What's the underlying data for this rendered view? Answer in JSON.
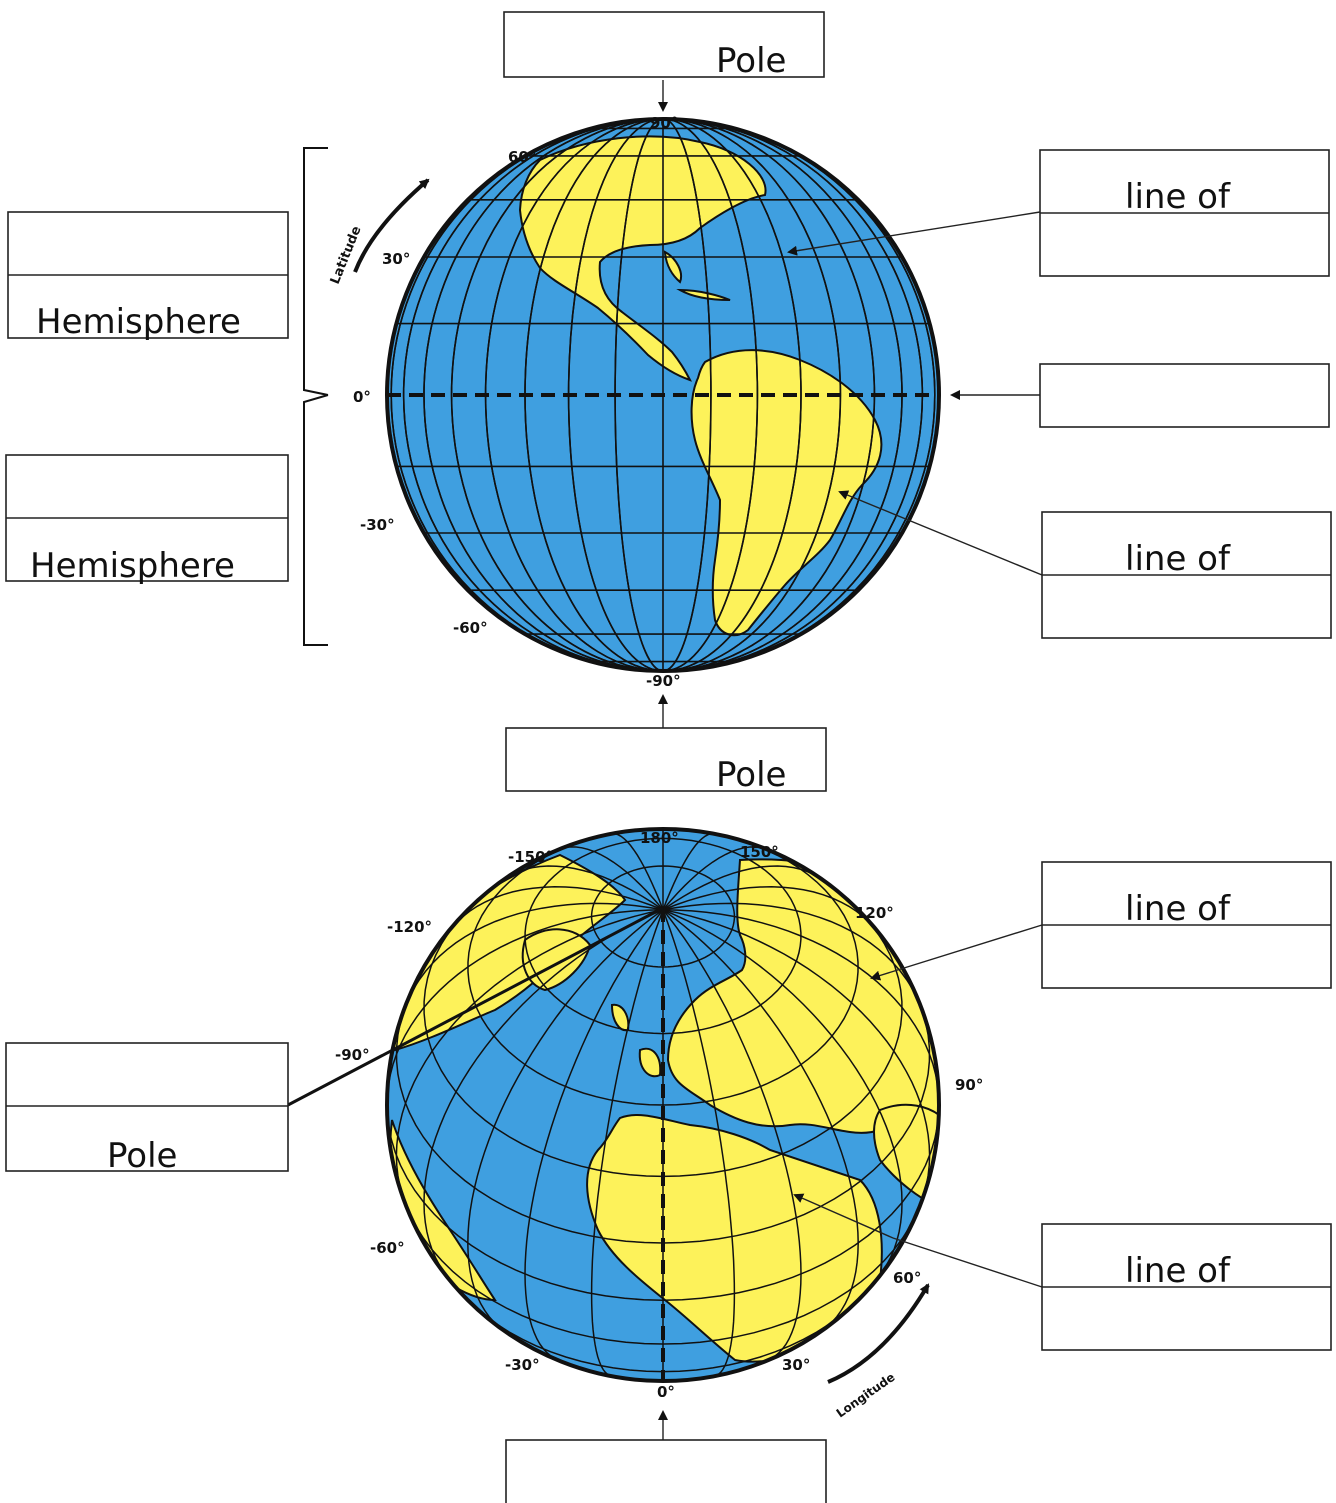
{
  "colors": {
    "ocean": "#3f9fe0",
    "land": "#fdf25a",
    "ink": "#111111"
  },
  "globe1": {
    "top_box_text": "Pole",
    "bottom_box_text": "Pole",
    "upper_left_box_text": "Hemisphere",
    "lower_left_box_text": "Hemisphere",
    "upper_right_box_text": "line of",
    "lower_right_box_text": "line of",
    "axis_label": "Latitude",
    "deg_labels": {
      "north_pole": "90°",
      "lat_60": "60°",
      "lat_30": "30°",
      "equator": "0°",
      "lat_neg30": "-30°",
      "lat_neg60": "-60°",
      "south_pole": "-90°"
    }
  },
  "globe2": {
    "left_box_text": "Pole",
    "upper_right_box_text": "line of",
    "lower_right_box_text": "line of",
    "axis_label": "Longitude",
    "deg_labels": {
      "d180": "180°",
      "dneg150": "-150°",
      "d150": "150°",
      "dneg120": "-120°",
      "d120": "120°",
      "dneg90": "-90°",
      "d90": "90°",
      "dneg60": "-60°",
      "d60": "60°",
      "dneg30": "-30°",
      "d30": "30°",
      "d0": "0°"
    }
  }
}
